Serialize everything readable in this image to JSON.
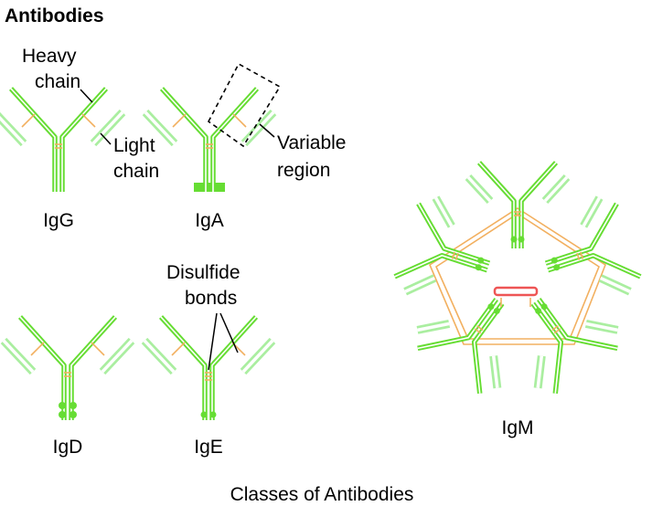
{
  "title": "Antibodies",
  "caption": "Classes of Antibodies",
  "labels": {
    "heavy_chain_1": "Heavy",
    "heavy_chain_2": "chain",
    "light_chain_1": "Light",
    "light_chain_2": "chain",
    "variable_region_1": "Variable",
    "variable_region_2": "region",
    "disulfide_1": "Disulfide",
    "disulfide_2": "bonds"
  },
  "classes": {
    "igg": "IgG",
    "iga": "IgA",
    "igd": "IgD",
    "ige": "IgE",
    "igm": "IgM"
  },
  "colors": {
    "heavy_chain": "#66dd33",
    "light_chain": "#aaeea0",
    "disulfide_bond": "#f2b060",
    "j_chain": "#ee5555"
  }
}
